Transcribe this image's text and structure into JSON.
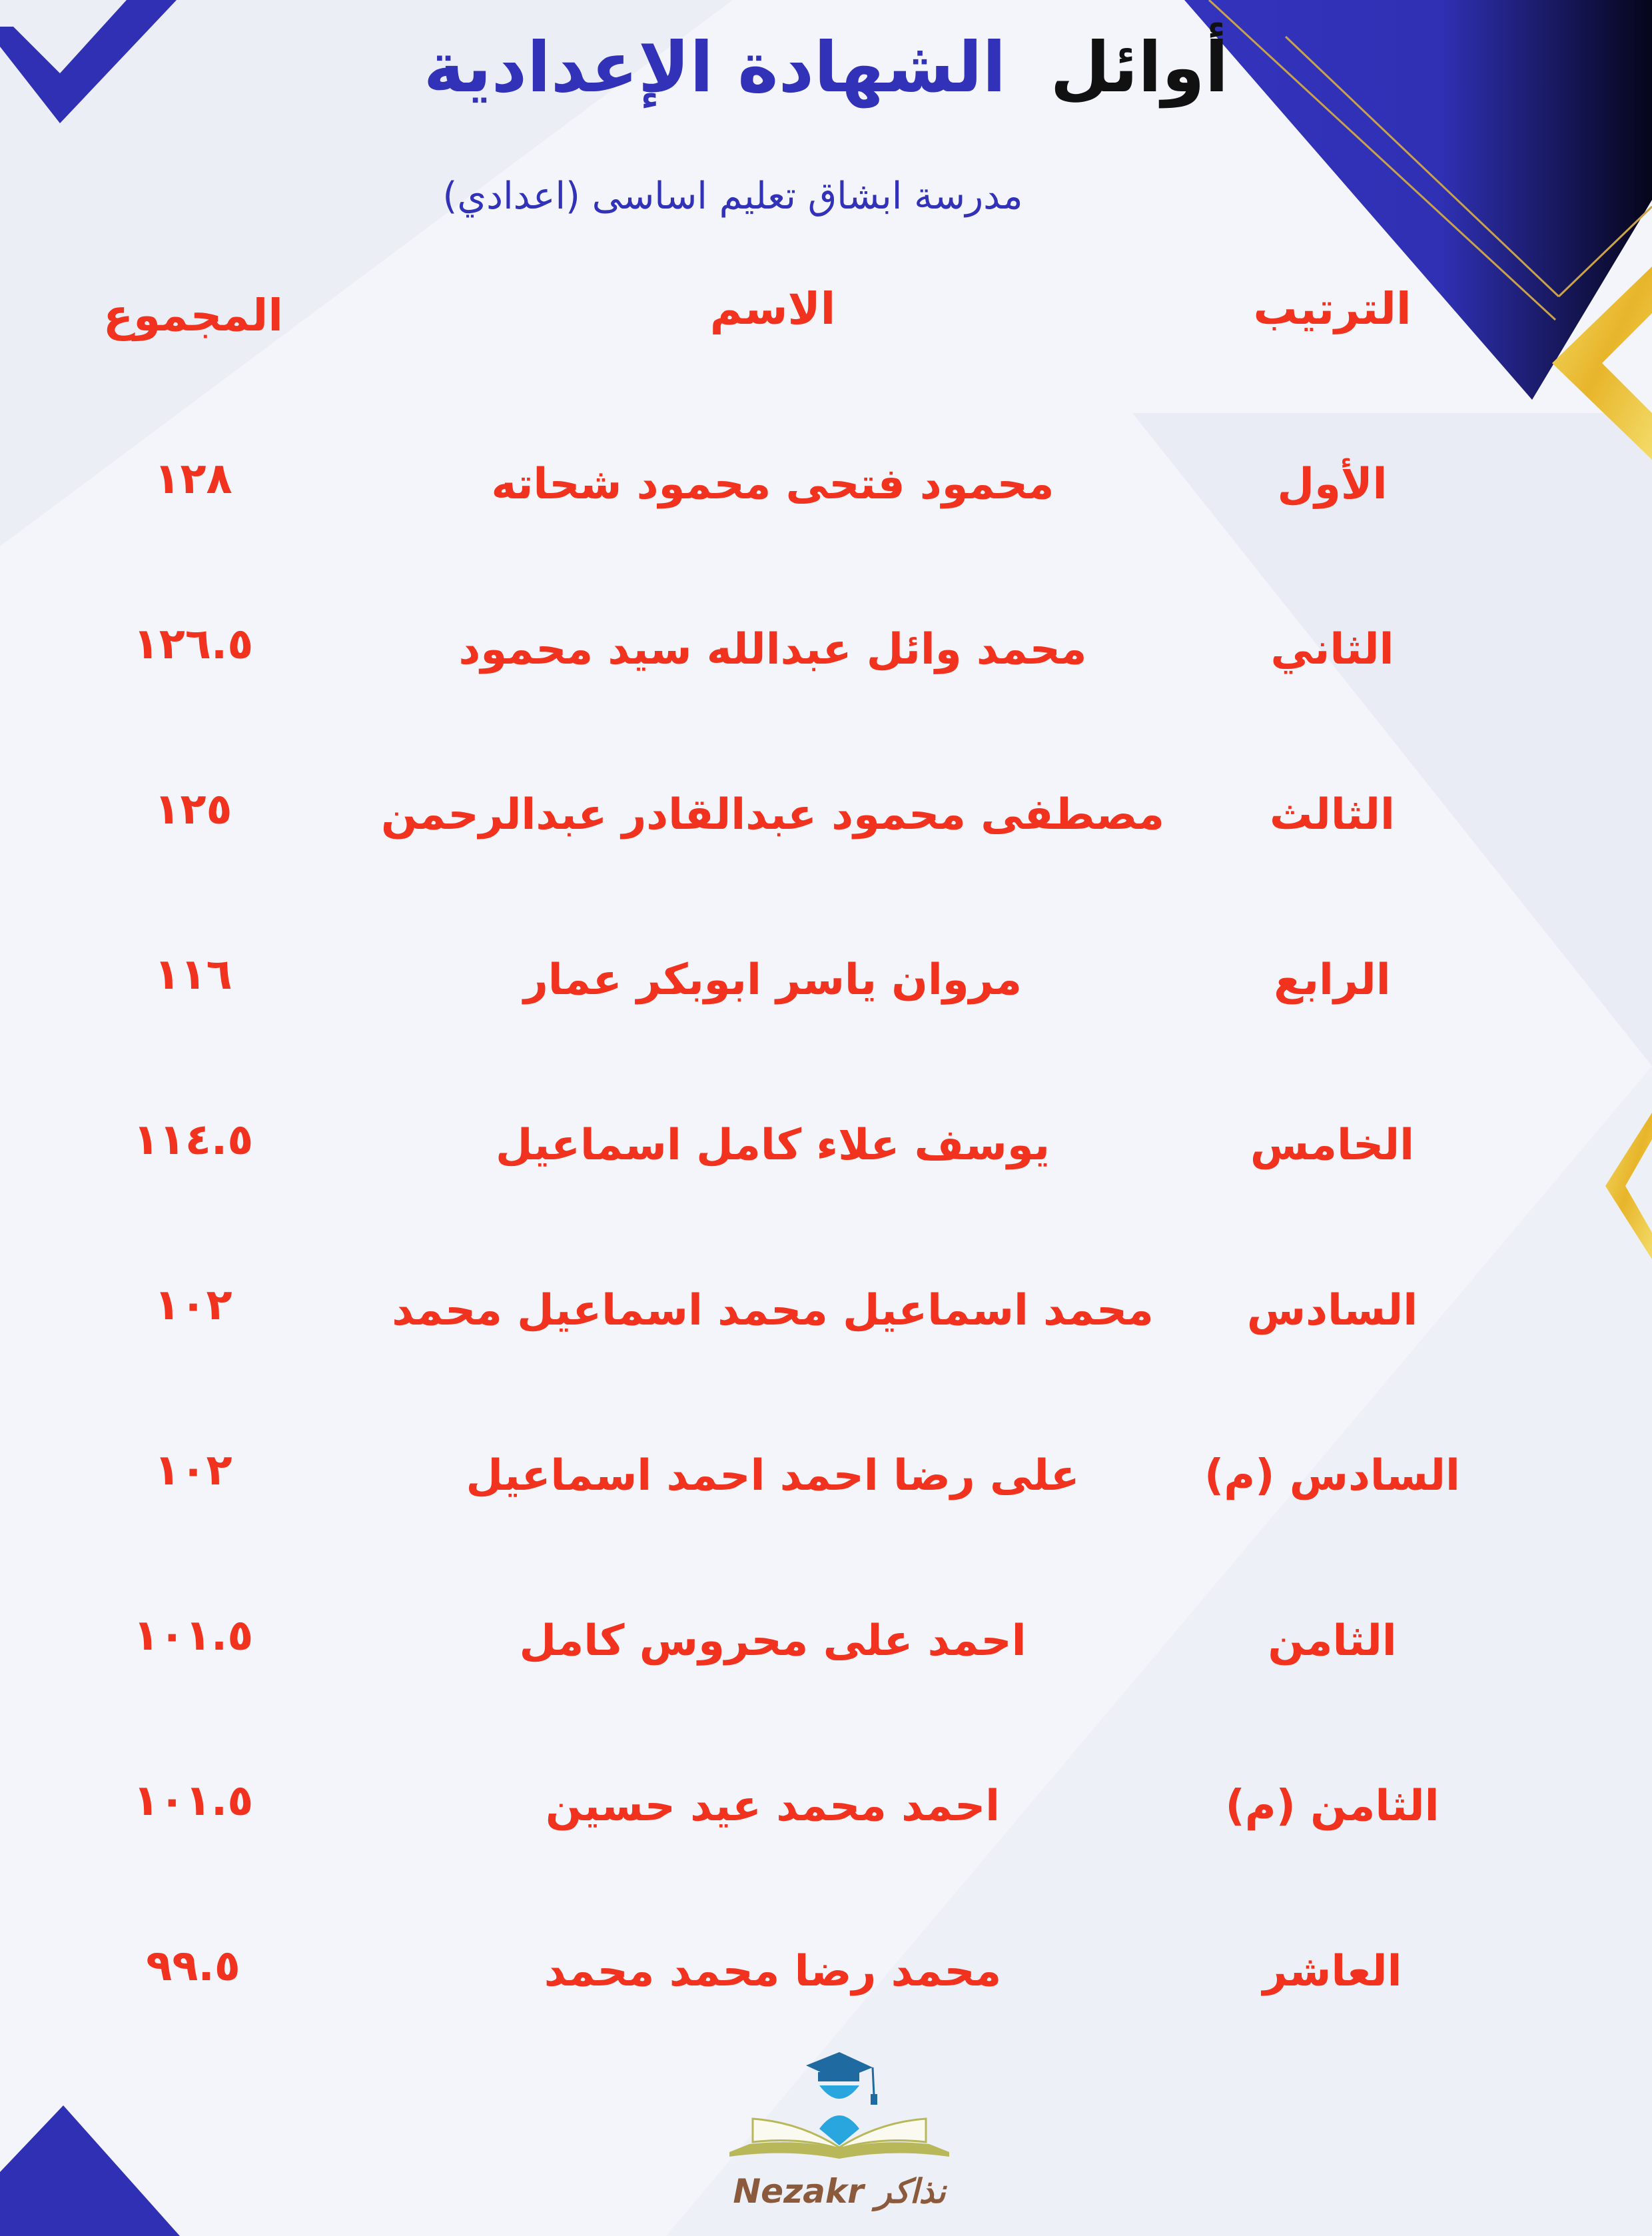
{
  "header": {
    "title_part1": "أوائل",
    "title_part2": "الشهادة الإعدادية",
    "subtitle": "مدرسة ابشاق تعليم اساسى (اعدادي)"
  },
  "table": {
    "columns": {
      "rank": "الترتيب",
      "name": "الاسم",
      "total": "المجموع"
    },
    "rows": [
      {
        "rank": "الأول",
        "name": "محمود فتحى محمود شحاته",
        "total": "١٢٨"
      },
      {
        "rank": "الثاني",
        "name": "محمد وائل عبدالله سيد محمود",
        "total": "١٢٦.٥"
      },
      {
        "rank": "الثالث",
        "name": "مصطفى محمود عبدالقادر عبدالرحمن",
        "total": "١٢٥"
      },
      {
        "rank": "الرابع",
        "name": "مروان ياسر ابوبكر عمار",
        "total": "١١٦"
      },
      {
        "rank": "الخامس",
        "name": "يوسف علاء كامل اسماعيل",
        "total": "١١٤.٥"
      },
      {
        "rank": "السادس",
        "name": "محمد اسماعيل محمد اسماعيل محمد",
        "total": "١٠٢"
      },
      {
        "rank": "السادس (م)",
        "name": "على رضا احمد احمد اسماعيل",
        "total": "١٠٢"
      },
      {
        "rank": "الثامن",
        "name": "احمد على محروس كامل",
        "total": "١٠١.٥"
      },
      {
        "rank": "الثامن (م)",
        "name": "احمد محمد عيد حسين",
        "total": "١٠١.٥"
      },
      {
        "rank": "العاشر",
        "name": "محمد رضا محمد محمد",
        "total": "٩٩.٥"
      }
    ]
  },
  "logo": {
    "text": "Nezakr نذاكر"
  },
  "colors": {
    "title_blue": "#3232b8",
    "accent_red": "#f0321e",
    "gold": "#e8c23a",
    "logo_brown": "#8b5a3c"
  }
}
